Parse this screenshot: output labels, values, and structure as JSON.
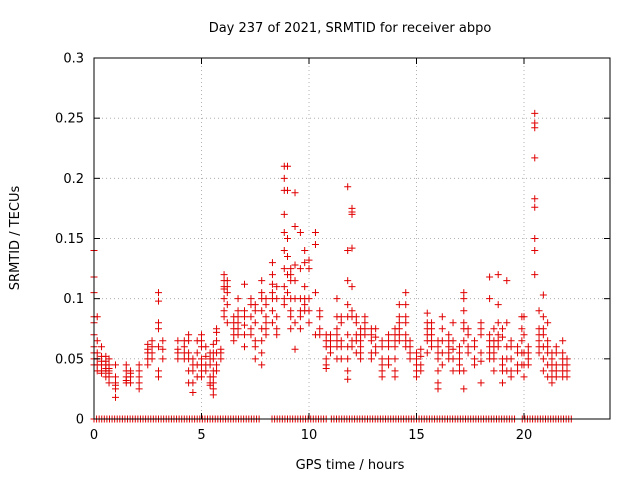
{
  "chart_data": {
    "type": "scatter",
    "title": "Day 237 of 2021, SRMTID for receiver abpo",
    "xlabel": "GPS time / hours",
    "ylabel": "SRMTID / TECUs",
    "xlim": [
      0,
      24
    ],
    "ylim": [
      0,
      0.3
    ],
    "xticks": [
      0,
      5,
      10,
      15,
      20
    ],
    "xtick_labels": [
      "0",
      "5",
      "10",
      "15",
      "20"
    ],
    "yticks": [
      0,
      0.05,
      0.1,
      0.15,
      0.2,
      0.25,
      0.3
    ],
    "ytick_labels": [
      "0",
      "0.05",
      "0.1",
      "0.15",
      "0.2",
      "0.25",
      "0.3"
    ],
    "grid": true,
    "marker": "+",
    "color": "#e00000",
    "series": [
      {
        "name": "SRMTID",
        "clusters": [
          {
            "x": 0.0,
            "y": [
              0.14,
              0.118,
              0.105,
              0.085,
              0.08,
              0.07,
              0.06,
              0.055,
              0.05,
              0.045
            ]
          },
          {
            "x": 0.15,
            "y": [
              0.085,
              0.065,
              0.055,
              0.05,
              0.045,
              0.04
            ]
          },
          {
            "x": 0.35,
            "y": [
              0.06,
              0.052,
              0.048,
              0.045,
              0.04,
              0.038
            ]
          },
          {
            "x": 0.55,
            "y": [
              0.052,
              0.048,
              0.045,
              0.042,
              0.04,
              0.035
            ]
          },
          {
            "x": 0.7,
            "y": [
              0.05,
              0.045,
              0.042,
              0.04,
              0.038,
              0.035,
              0.03
            ]
          },
          {
            "x": 1.0,
            "y": [
              0.045,
              0.035,
              0.03,
              0.028,
              0.025,
              0.018
            ]
          },
          {
            "x": 1.5,
            "y": [
              0.045,
              0.04,
              0.035,
              0.032,
              0.03
            ]
          },
          {
            "x": 1.7,
            "y": [
              0.04,
              0.038,
              0.035,
              0.03
            ]
          },
          {
            "x": 2.1,
            "y": [
              0.045,
              0.04,
              0.035,
              0.03,
              0.025
            ]
          },
          {
            "x": 2.5,
            "y": [
              0.062,
              0.058,
              0.055,
              0.05,
              0.045
            ]
          },
          {
            "x": 2.7,
            "y": [
              0.065,
              0.06,
              0.055,
              0.05
            ]
          },
          {
            "x": 3.0,
            "y": [
              0.105,
              0.098,
              0.08,
              0.075,
              0.06,
              0.04,
              0.035
            ]
          },
          {
            "x": 3.2,
            "y": [
              0.065,
              0.058,
              0.05
            ]
          },
          {
            "x": 3.9,
            "y": [
              0.065,
              0.058,
              0.055,
              0.05
            ]
          },
          {
            "x": 4.2,
            "y": [
              0.065,
              0.06,
              0.055,
              0.05
            ]
          },
          {
            "x": 4.4,
            "y": [
              0.07,
              0.065,
              0.055,
              0.05,
              0.04,
              0.03
            ]
          },
          {
            "x": 4.6,
            "y": [
              0.05,
              0.045,
              0.04,
              0.03,
              0.022
            ]
          },
          {
            "x": 4.8,
            "y": [
              0.065,
              0.055,
              0.045,
              0.035
            ]
          },
          {
            "x": 5.0,
            "y": [
              0.07,
              0.065,
              0.06,
              0.05,
              0.045,
              0.04,
              0.035
            ]
          },
          {
            "x": 5.2,
            "y": [
              0.06,
              0.052,
              0.045,
              0.04
            ]
          },
          {
            "x": 5.4,
            "y": [
              0.055,
              0.05,
              0.045,
              0.035,
              0.03,
              0.028
            ]
          },
          {
            "x": 5.55,
            "y": [
              0.062,
              0.055,
              0.05,
              0.04,
              0.035,
              0.03,
              0.025,
              0.02
            ]
          },
          {
            "x": 5.7,
            "y": [
              0.075,
              0.072,
              0.065,
              0.055,
              0.045,
              0.04
            ]
          },
          {
            "x": 5.9,
            "y": [
              0.058,
              0.055,
              0.05
            ]
          },
          {
            "x": 6.05,
            "y": [
              0.12,
              0.115,
              0.11,
              0.108,
              0.1,
              0.09,
              0.085
            ]
          },
          {
            "x": 6.2,
            "y": [
              0.115,
              0.11,
              0.105,
              0.095,
              0.08
            ]
          },
          {
            "x": 6.5,
            "y": [
              0.085,
              0.08,
              0.075,
              0.07,
              0.065
            ]
          },
          {
            "x": 6.7,
            "y": [
              0.1,
              0.09,
              0.085,
              0.08,
              0.075,
              0.07
            ]
          },
          {
            "x": 7.0,
            "y": [
              0.112,
              0.09,
              0.085,
              0.078,
              0.07,
              0.06
            ]
          },
          {
            "x": 7.3,
            "y": [
              0.1,
              0.095,
              0.085,
              0.075,
              0.07
            ]
          },
          {
            "x": 7.5,
            "y": [
              0.095,
              0.09,
              0.08,
              0.065,
              0.06,
              0.05
            ]
          },
          {
            "x": 7.8,
            "y": [
              0.115,
              0.105,
              0.1,
              0.09,
              0.075,
              0.065,
              0.055,
              0.045
            ]
          },
          {
            "x": 8.0,
            "y": [
              0.1,
              0.095,
              0.085,
              0.08,
              0.075,
              0.07
            ]
          },
          {
            "x": 8.3,
            "y": [
              0.13,
              0.12,
              0.112,
              0.105,
              0.1,
              0.09,
              0.08
            ]
          },
          {
            "x": 8.5,
            "y": [
              0.11,
              0.1,
              0.085,
              0.075,
              0.07
            ]
          },
          {
            "x": 8.85,
            "y": [
              0.21,
              0.2,
              0.19,
              0.17,
              0.155,
              0.14,
              0.125,
              0.11,
              0.1,
              0.095
            ]
          },
          {
            "x": 9.0,
            "y": [
              0.21,
              0.19,
              0.15,
              0.135,
              0.12,
              0.105
            ]
          },
          {
            "x": 9.15,
            "y": [
              0.125,
              0.12,
              0.115,
              0.1,
              0.09,
              0.085,
              0.075
            ]
          },
          {
            "x": 9.35,
            "y": [
              0.188,
              0.16,
              0.128,
              0.115,
              0.1,
              0.08,
              0.058
            ]
          },
          {
            "x": 9.6,
            "y": [
              0.155,
              0.125,
              0.1,
              0.09,
              0.085,
              0.075
            ]
          },
          {
            "x": 9.8,
            "y": [
              0.14,
              0.13,
              0.11,
              0.1,
              0.095,
              0.09
            ]
          },
          {
            "x": 10.0,
            "y": [
              0.132,
              0.125,
              0.1,
              0.09,
              0.08
            ]
          },
          {
            "x": 10.3,
            "y": [
              0.155,
              0.145,
              0.105,
              0.07
            ]
          },
          {
            "x": 10.5,
            "y": [
              0.09,
              0.085,
              0.075,
              0.07
            ]
          },
          {
            "x": 10.8,
            "y": [
              0.07,
              0.065,
              0.06,
              0.05,
              0.045,
              0.042
            ]
          },
          {
            "x": 11.0,
            "y": [
              0.07,
              0.065,
              0.06,
              0.055
            ]
          },
          {
            "x": 11.3,
            "y": [
              0.1,
              0.085,
              0.075,
              0.07,
              0.065,
              0.06,
              0.05
            ]
          },
          {
            "x": 11.5,
            "y": [
              0.085,
              0.08,
              0.065,
              0.06,
              0.05
            ]
          },
          {
            "x": 11.8,
            "y": [
              0.193,
              0.14,
              0.115,
              0.095,
              0.085,
              0.07,
              0.06,
              0.05,
              0.04,
              0.033
            ]
          },
          {
            "x": 12.0,
            "y": [
              0.175,
              0.172,
              0.17,
              0.142,
              0.11,
              0.09,
              0.085,
              0.065,
              0.06
            ]
          },
          {
            "x": 12.2,
            "y": [
              0.085,
              0.08,
              0.07,
              0.065,
              0.055
            ]
          },
          {
            "x": 12.4,
            "y": [
              0.075,
              0.07,
              0.065,
              0.06,
              0.055,
              0.05
            ]
          },
          {
            "x": 12.6,
            "y": [
              0.085,
              0.08,
              0.075,
              0.07
            ]
          },
          {
            "x": 12.9,
            "y": [
              0.075,
              0.07,
              0.065,
              0.055,
              0.05
            ]
          },
          {
            "x": 13.1,
            "y": [
              0.075,
              0.068,
              0.06,
              0.055
            ]
          },
          {
            "x": 13.4,
            "y": [
              0.065,
              0.06,
              0.05,
              0.045,
              0.04,
              0.035
            ]
          },
          {
            "x": 13.7,
            "y": [
              0.07,
              0.065,
              0.06,
              0.05,
              0.045
            ]
          },
          {
            "x": 14.0,
            "y": [
              0.075,
              0.07,
              0.065,
              0.06,
              0.05,
              0.04,
              0.035
            ]
          },
          {
            "x": 14.2,
            "y": [
              0.095,
              0.085,
              0.08,
              0.075,
              0.07,
              0.065
            ]
          },
          {
            "x": 14.5,
            "y": [
              0.105,
              0.095,
              0.085,
              0.08,
              0.07,
              0.065,
              0.06
            ]
          },
          {
            "x": 14.7,
            "y": [
              0.065,
              0.06,
              0.055,
              0.05
            ]
          },
          {
            "x": 15.0,
            "y": [
              0.055,
              0.05,
              0.045,
              0.04,
              0.035
            ]
          },
          {
            "x": 15.2,
            "y": [
              0.058,
              0.052,
              0.045,
              0.04
            ]
          },
          {
            "x": 15.5,
            "y": [
              0.088,
              0.08,
              0.075,
              0.07,
              0.065,
              0.055
            ]
          },
          {
            "x": 15.7,
            "y": [
              0.08,
              0.075,
              0.07,
              0.065,
              0.06
            ]
          },
          {
            "x": 16.0,
            "y": [
              0.065,
              0.06,
              0.055,
              0.05,
              0.04,
              0.03,
              0.025
            ]
          },
          {
            "x": 16.2,
            "y": [
              0.085,
              0.075,
              0.065,
              0.055,
              0.045
            ]
          },
          {
            "x": 16.5,
            "y": [
              0.07,
              0.065,
              0.06,
              0.055,
              0.05
            ]
          },
          {
            "x": 16.7,
            "y": [
              0.08,
              0.065,
              0.058,
              0.05,
              0.04
            ]
          },
          {
            "x": 17.0,
            "y": [
              0.06,
              0.055,
              0.05,
              0.045,
              0.04
            ]
          },
          {
            "x": 17.2,
            "y": [
              0.105,
              0.1,
              0.09,
              0.08,
              0.075,
              0.065,
              0.04,
              0.025
            ]
          },
          {
            "x": 17.4,
            "y": [
              0.075,
              0.07,
              0.06,
              0.055
            ]
          },
          {
            "x": 17.7,
            "y": [
              0.065,
              0.06,
              0.05,
              0.045
            ]
          },
          {
            "x": 18.0,
            "y": [
              0.08,
              0.075,
              0.07,
              0.055,
              0.048,
              0.03
            ]
          },
          {
            "x": 18.4,
            "y": [
              0.118,
              0.1,
              0.07,
              0.065,
              0.06,
              0.055,
              0.05
            ]
          },
          {
            "x": 18.6,
            "y": [
              0.075,
              0.065,
              0.06,
              0.055,
              0.05,
              0.04
            ]
          },
          {
            "x": 18.8,
            "y": [
              0.12,
              0.095,
              0.08,
              0.07,
              0.065,
              0.06
            ]
          },
          {
            "x": 19.0,
            "y": [
              0.075,
              0.068,
              0.05,
              0.045,
              0.04,
              0.03
            ]
          },
          {
            "x": 19.2,
            "y": [
              0.115,
              0.08,
              0.06,
              0.05,
              0.04
            ]
          },
          {
            "x": 19.4,
            "y": [
              0.065,
              0.06,
              0.05,
              0.04,
              0.035
            ]
          },
          {
            "x": 19.7,
            "y": [
              0.06,
              0.055,
              0.045,
              0.04
            ]
          },
          {
            "x": 19.9,
            "y": [
              0.085,
              0.075,
              0.065,
              0.055,
              0.045
            ]
          },
          {
            "x": 20.0,
            "y": [
              0.085,
              0.07,
              0.055,
              0.045,
              0.035
            ]
          },
          {
            "x": 20.2,
            "y": [
              0.06,
              0.055,
              0.05,
              0.045
            ]
          },
          {
            "x": 20.5,
            "y": [
              0.254,
              0.246,
              0.242,
              0.217,
              0.183,
              0.176,
              0.15,
              0.14,
              0.12
            ]
          },
          {
            "x": 20.7,
            "y": [
              0.09,
              0.075,
              0.07,
              0.065,
              0.06,
              0.055
            ]
          },
          {
            "x": 20.9,
            "y": [
              0.103,
              0.085,
              0.075,
              0.07,
              0.06,
              0.05,
              0.04
            ]
          },
          {
            "x": 21.1,
            "y": [
              0.08,
              0.065,
              0.06,
              0.055,
              0.045,
              0.035
            ]
          },
          {
            "x": 21.3,
            "y": [
              0.055,
              0.05,
              0.045,
              0.04,
              0.035,
              0.03
            ]
          },
          {
            "x": 21.5,
            "y": [
              0.06,
              0.055,
              0.045,
              0.04,
              0.035
            ]
          },
          {
            "x": 21.8,
            "y": [
              0.065,
              0.055,
              0.05,
              0.045,
              0.04,
              0.035
            ]
          },
          {
            "x": 22.0,
            "y": [
              0.05,
              0.045,
              0.04,
              0.035
            ]
          }
        ],
        "zero_x_range": [
          0,
          22.2
        ],
        "zero_x_gaps": [
          [
            7.8,
            8.2
          ],
          [
            10.8,
            11.0
          ],
          [
            19.6,
            19.8
          ]
        ],
        "zero_x_step": 0.12
      }
    ]
  }
}
